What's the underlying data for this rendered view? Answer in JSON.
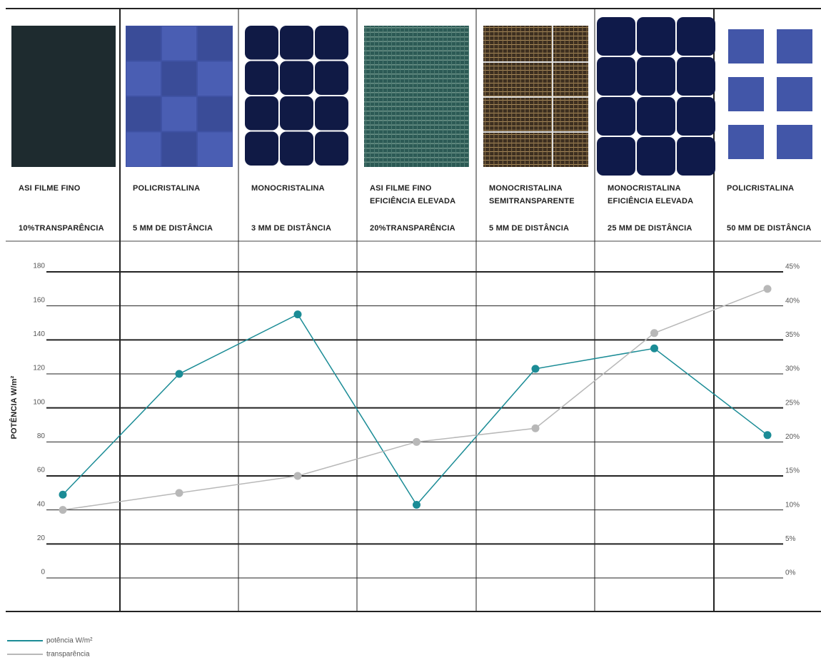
{
  "panels": [
    {
      "name": [
        "ASI FILME FINO"
      ],
      "detail": "10%TRANSPARÊNCIA"
    },
    {
      "name": [
        "POLICRISTALINA"
      ],
      "detail": "5 MM DE DISTÂNCIA"
    },
    {
      "name": [
        "MONOCRISTALINA"
      ],
      "detail": "3 MM DE DISTÂNCIA"
    },
    {
      "name": [
        "ASI FILME FINO",
        "EFICIÊNCIA ELEVADA"
      ],
      "detail": "20%TRANSPARÊNCIA"
    },
    {
      "name": [
        "MONOCRISTALINA",
        "SEMITRANSPARENTE"
      ],
      "detail": "5 MM DE DISTÂNCIA"
    },
    {
      "name": [
        "MONOCRISTALINA",
        "EFICIÊNCIA ELEVADA"
      ],
      "detail": "25 MM DE DISTÂNCIA"
    },
    {
      "name": [
        "POLICRISTALINA"
      ],
      "detail": "50 MM DE DISTÂNCIA"
    }
  ],
  "chart_data": {
    "type": "line",
    "ylabel": "POTÊNCIA W/m²",
    "ylim": [
      0,
      180
    ],
    "yticks": [
      0,
      20,
      40,
      60,
      80,
      100,
      120,
      140,
      160,
      180
    ],
    "y2lim": [
      0,
      45
    ],
    "y2ticks": [
      {
        "value": 0,
        "label": "0%"
      },
      {
        "value": 5,
        "label": "5%"
      },
      {
        "value": 10,
        "label": "10%"
      },
      {
        "value": 15,
        "label": "15%"
      },
      {
        "value": 20,
        "label": "20%"
      },
      {
        "value": 25,
        "label": "25%"
      },
      {
        "value": 30,
        "label": "30%"
      },
      {
        "value": 35,
        "label": "35%"
      },
      {
        "value": 40,
        "label": "40%"
      },
      {
        "value": 45,
        "label": "45%"
      }
    ],
    "grid": true,
    "series": [
      {
        "name": "potência W/m²",
        "color": "#1b8c96",
        "values": [
          49,
          120,
          155,
          43,
          123,
          135,
          84
        ]
      },
      {
        "name": "transparência",
        "color": "#b8b8b8",
        "axis": "y2",
        "values": [
          10,
          12.5,
          15,
          20,
          22,
          36,
          42.5
        ]
      }
    ]
  }
}
